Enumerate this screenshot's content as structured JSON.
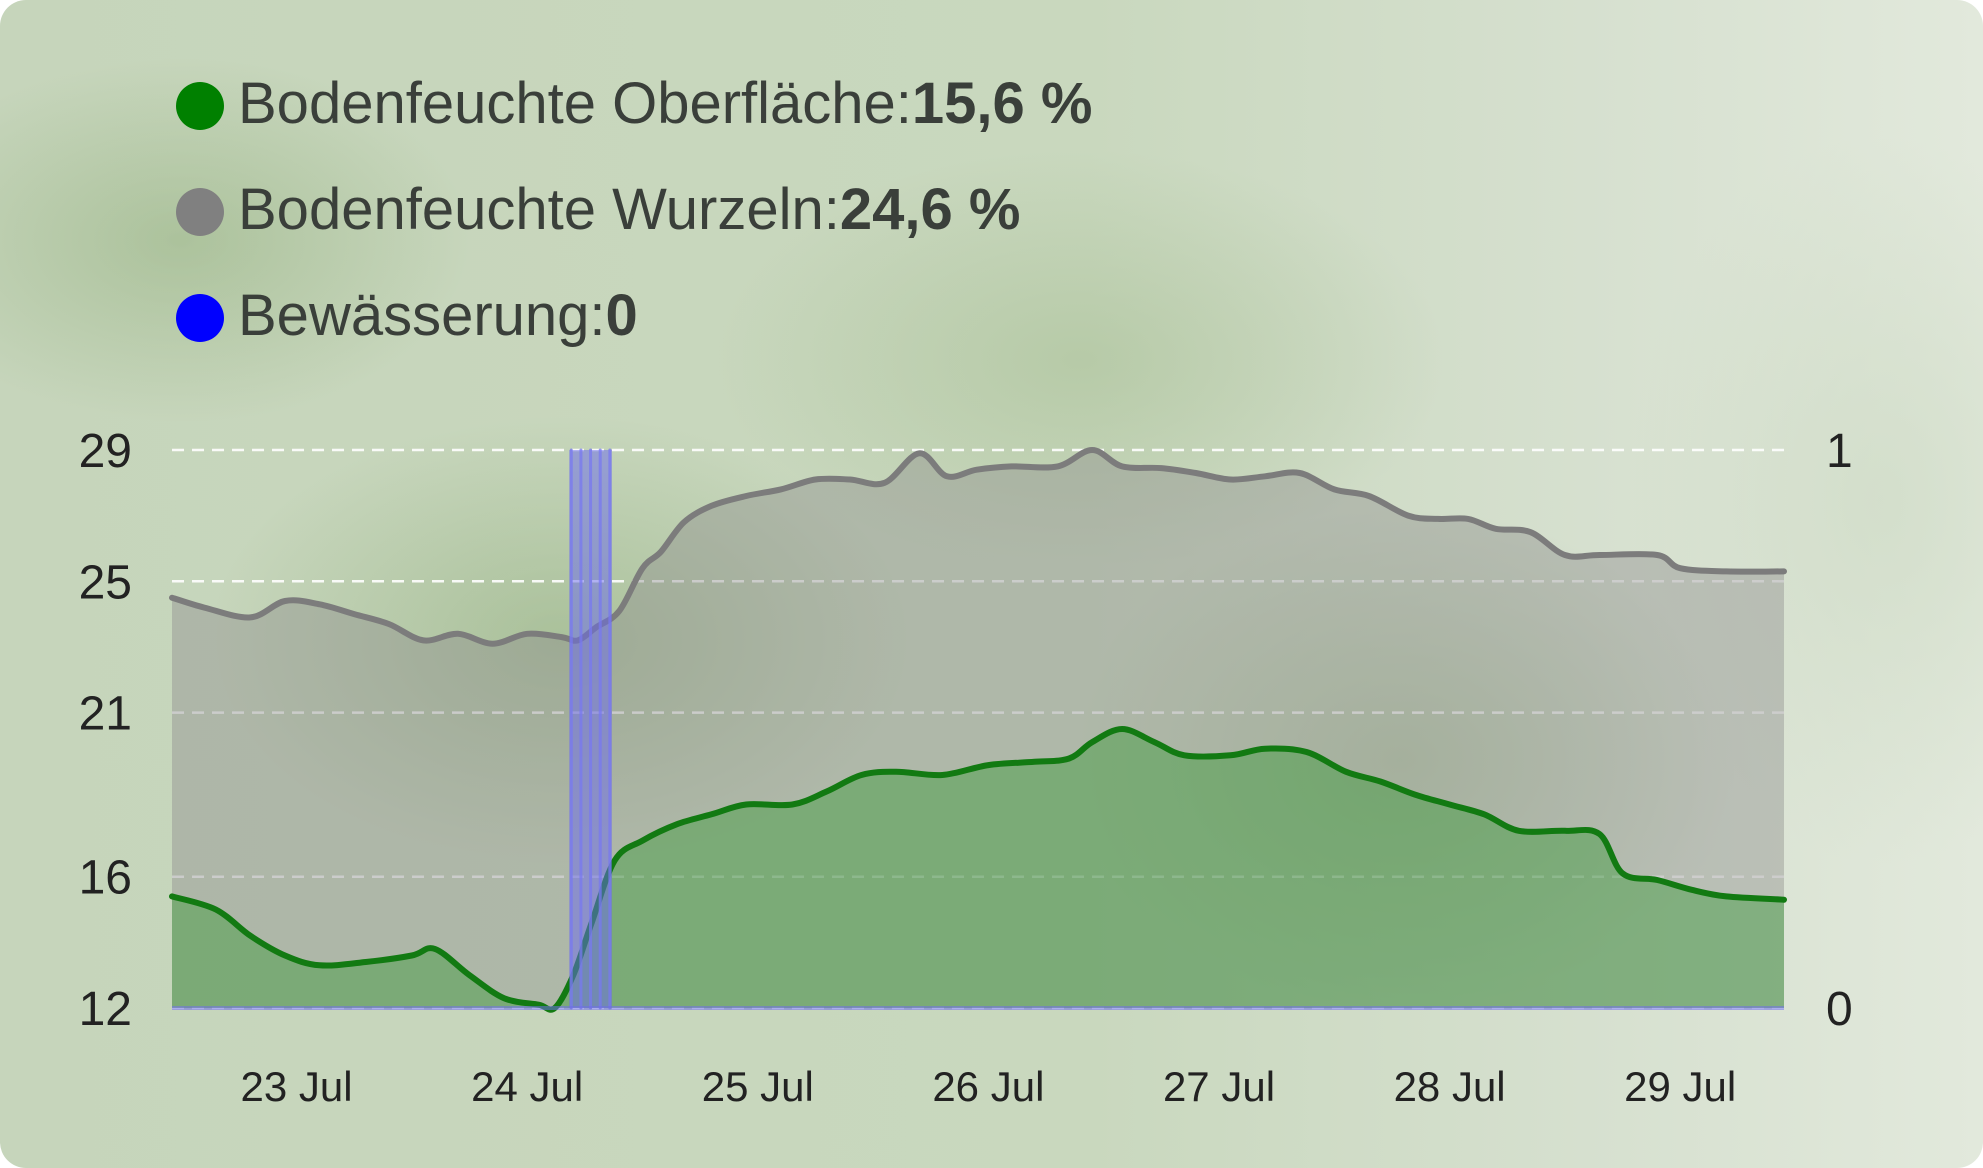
{
  "legend": [
    {
      "label": "Bodenfeuchte Oberfläche: ",
      "value": "15,6 %",
      "color": "#008000"
    },
    {
      "label": "Bodenfeuchte Wurzeln: ",
      "value": "24,6 %",
      "color": "#808080"
    },
    {
      "label": "Bewässerung: ",
      "value": "0",
      "color": "#0000ff"
    }
  ],
  "chart_data": {
    "type": "area",
    "y_left_ticks": [
      "29",
      "25",
      "21",
      "16",
      "12"
    ],
    "y_left_range": [
      12,
      29
    ],
    "y_right_ticks": [
      "1",
      "0"
    ],
    "y_right_range": [
      0,
      1
    ],
    "x_ticks": [
      "23 Jul",
      "24 Jul",
      "25 Jul",
      "26 Jul",
      "27 Jul",
      "28 Jul",
      "29 Jul"
    ],
    "x_range_days": [
      22.46,
      29.45
    ],
    "grid": true,
    "grid_style": "dashed horizontal",
    "legend_position": "top-left",
    "series": [
      {
        "name": "Bodenfeuchte Wurzeln",
        "axis": "left",
        "color": "#808080",
        "points": [
          [
            22.46,
            24.5
          ],
          [
            22.6,
            24.2
          ],
          [
            22.8,
            23.9
          ],
          [
            22.95,
            24.4
          ],
          [
            23.1,
            24.3
          ],
          [
            23.25,
            24.0
          ],
          [
            23.4,
            23.7
          ],
          [
            23.55,
            23.2
          ],
          [
            23.7,
            23.4
          ],
          [
            23.85,
            23.1
          ],
          [
            24.0,
            23.4
          ],
          [
            24.15,
            23.3
          ],
          [
            24.22,
            23.2
          ],
          [
            24.3,
            23.6
          ],
          [
            24.4,
            24.1
          ],
          [
            24.5,
            25.4
          ],
          [
            24.58,
            25.9
          ],
          [
            24.68,
            26.8
          ],
          [
            24.8,
            27.3
          ],
          [
            24.95,
            27.6
          ],
          [
            25.1,
            27.8
          ],
          [
            25.25,
            28.1
          ],
          [
            25.4,
            28.1
          ],
          [
            25.55,
            28.0
          ],
          [
            25.7,
            28.9
          ],
          [
            25.82,
            28.2
          ],
          [
            25.95,
            28.4
          ],
          [
            26.1,
            28.5
          ],
          [
            26.3,
            28.5
          ],
          [
            26.45,
            29.0
          ],
          [
            26.58,
            28.5
          ],
          [
            26.75,
            28.45
          ],
          [
            26.9,
            28.3
          ],
          [
            27.05,
            28.1
          ],
          [
            27.2,
            28.2
          ],
          [
            27.35,
            28.3
          ],
          [
            27.5,
            27.8
          ],
          [
            27.65,
            27.6
          ],
          [
            27.82,
            27.0
          ],
          [
            27.95,
            26.9
          ],
          [
            28.08,
            26.9
          ],
          [
            28.2,
            26.6
          ],
          [
            28.35,
            26.5
          ],
          [
            28.5,
            25.8
          ],
          [
            28.65,
            25.8
          ],
          [
            28.9,
            25.8
          ],
          [
            29.0,
            25.4
          ],
          [
            29.2,
            25.3
          ],
          [
            29.45,
            25.3
          ]
        ]
      },
      {
        "name": "Bodenfeuchte Oberfläche",
        "axis": "left",
        "color": "#008000",
        "points": [
          [
            22.46,
            15.4
          ],
          [
            22.65,
            15.0
          ],
          [
            22.8,
            14.2
          ],
          [
            22.95,
            13.6
          ],
          [
            23.1,
            13.3
          ],
          [
            23.3,
            13.4
          ],
          [
            23.5,
            13.6
          ],
          [
            23.6,
            13.8
          ],
          [
            23.75,
            13.0
          ],
          [
            23.9,
            12.3
          ],
          [
            24.05,
            12.1
          ],
          [
            24.12,
            12.0
          ],
          [
            24.2,
            13.0
          ],
          [
            24.28,
            14.6
          ],
          [
            24.38,
            16.5
          ],
          [
            24.5,
            17.1
          ],
          [
            24.65,
            17.6
          ],
          [
            24.8,
            17.9
          ],
          [
            24.95,
            18.2
          ],
          [
            25.15,
            18.2
          ],
          [
            25.3,
            18.6
          ],
          [
            25.45,
            19.1
          ],
          [
            25.6,
            19.2
          ],
          [
            25.8,
            19.1
          ],
          [
            26.0,
            19.4
          ],
          [
            26.2,
            19.5
          ],
          [
            26.35,
            19.6
          ],
          [
            26.45,
            20.1
          ],
          [
            26.58,
            20.5
          ],
          [
            26.72,
            20.1
          ],
          [
            26.85,
            19.7
          ],
          [
            27.05,
            19.7
          ],
          [
            27.2,
            19.9
          ],
          [
            27.38,
            19.8
          ],
          [
            27.55,
            19.2
          ],
          [
            27.7,
            18.9
          ],
          [
            27.85,
            18.5
          ],
          [
            28.0,
            18.2
          ],
          [
            28.15,
            17.9
          ],
          [
            28.3,
            17.4
          ],
          [
            28.5,
            17.4
          ],
          [
            28.65,
            17.3
          ],
          [
            28.75,
            16.1
          ],
          [
            28.9,
            15.9
          ],
          [
            29.05,
            15.6
          ],
          [
            29.2,
            15.4
          ],
          [
            29.45,
            15.3
          ]
        ]
      },
      {
        "name": "Bewässerung",
        "axis": "right",
        "color": "#0000ff",
        "points": [
          [
            22.46,
            0
          ],
          [
            24.2,
            0
          ],
          [
            24.2,
            1
          ],
          [
            24.25,
            1
          ],
          [
            24.25,
            0
          ],
          [
            24.3,
            0
          ],
          [
            24.3,
            1
          ],
          [
            24.35,
            1
          ],
          [
            24.35,
            0
          ],
          [
            24.4,
            0
          ],
          [
            29.45,
            0
          ]
        ]
      }
    ]
  }
}
